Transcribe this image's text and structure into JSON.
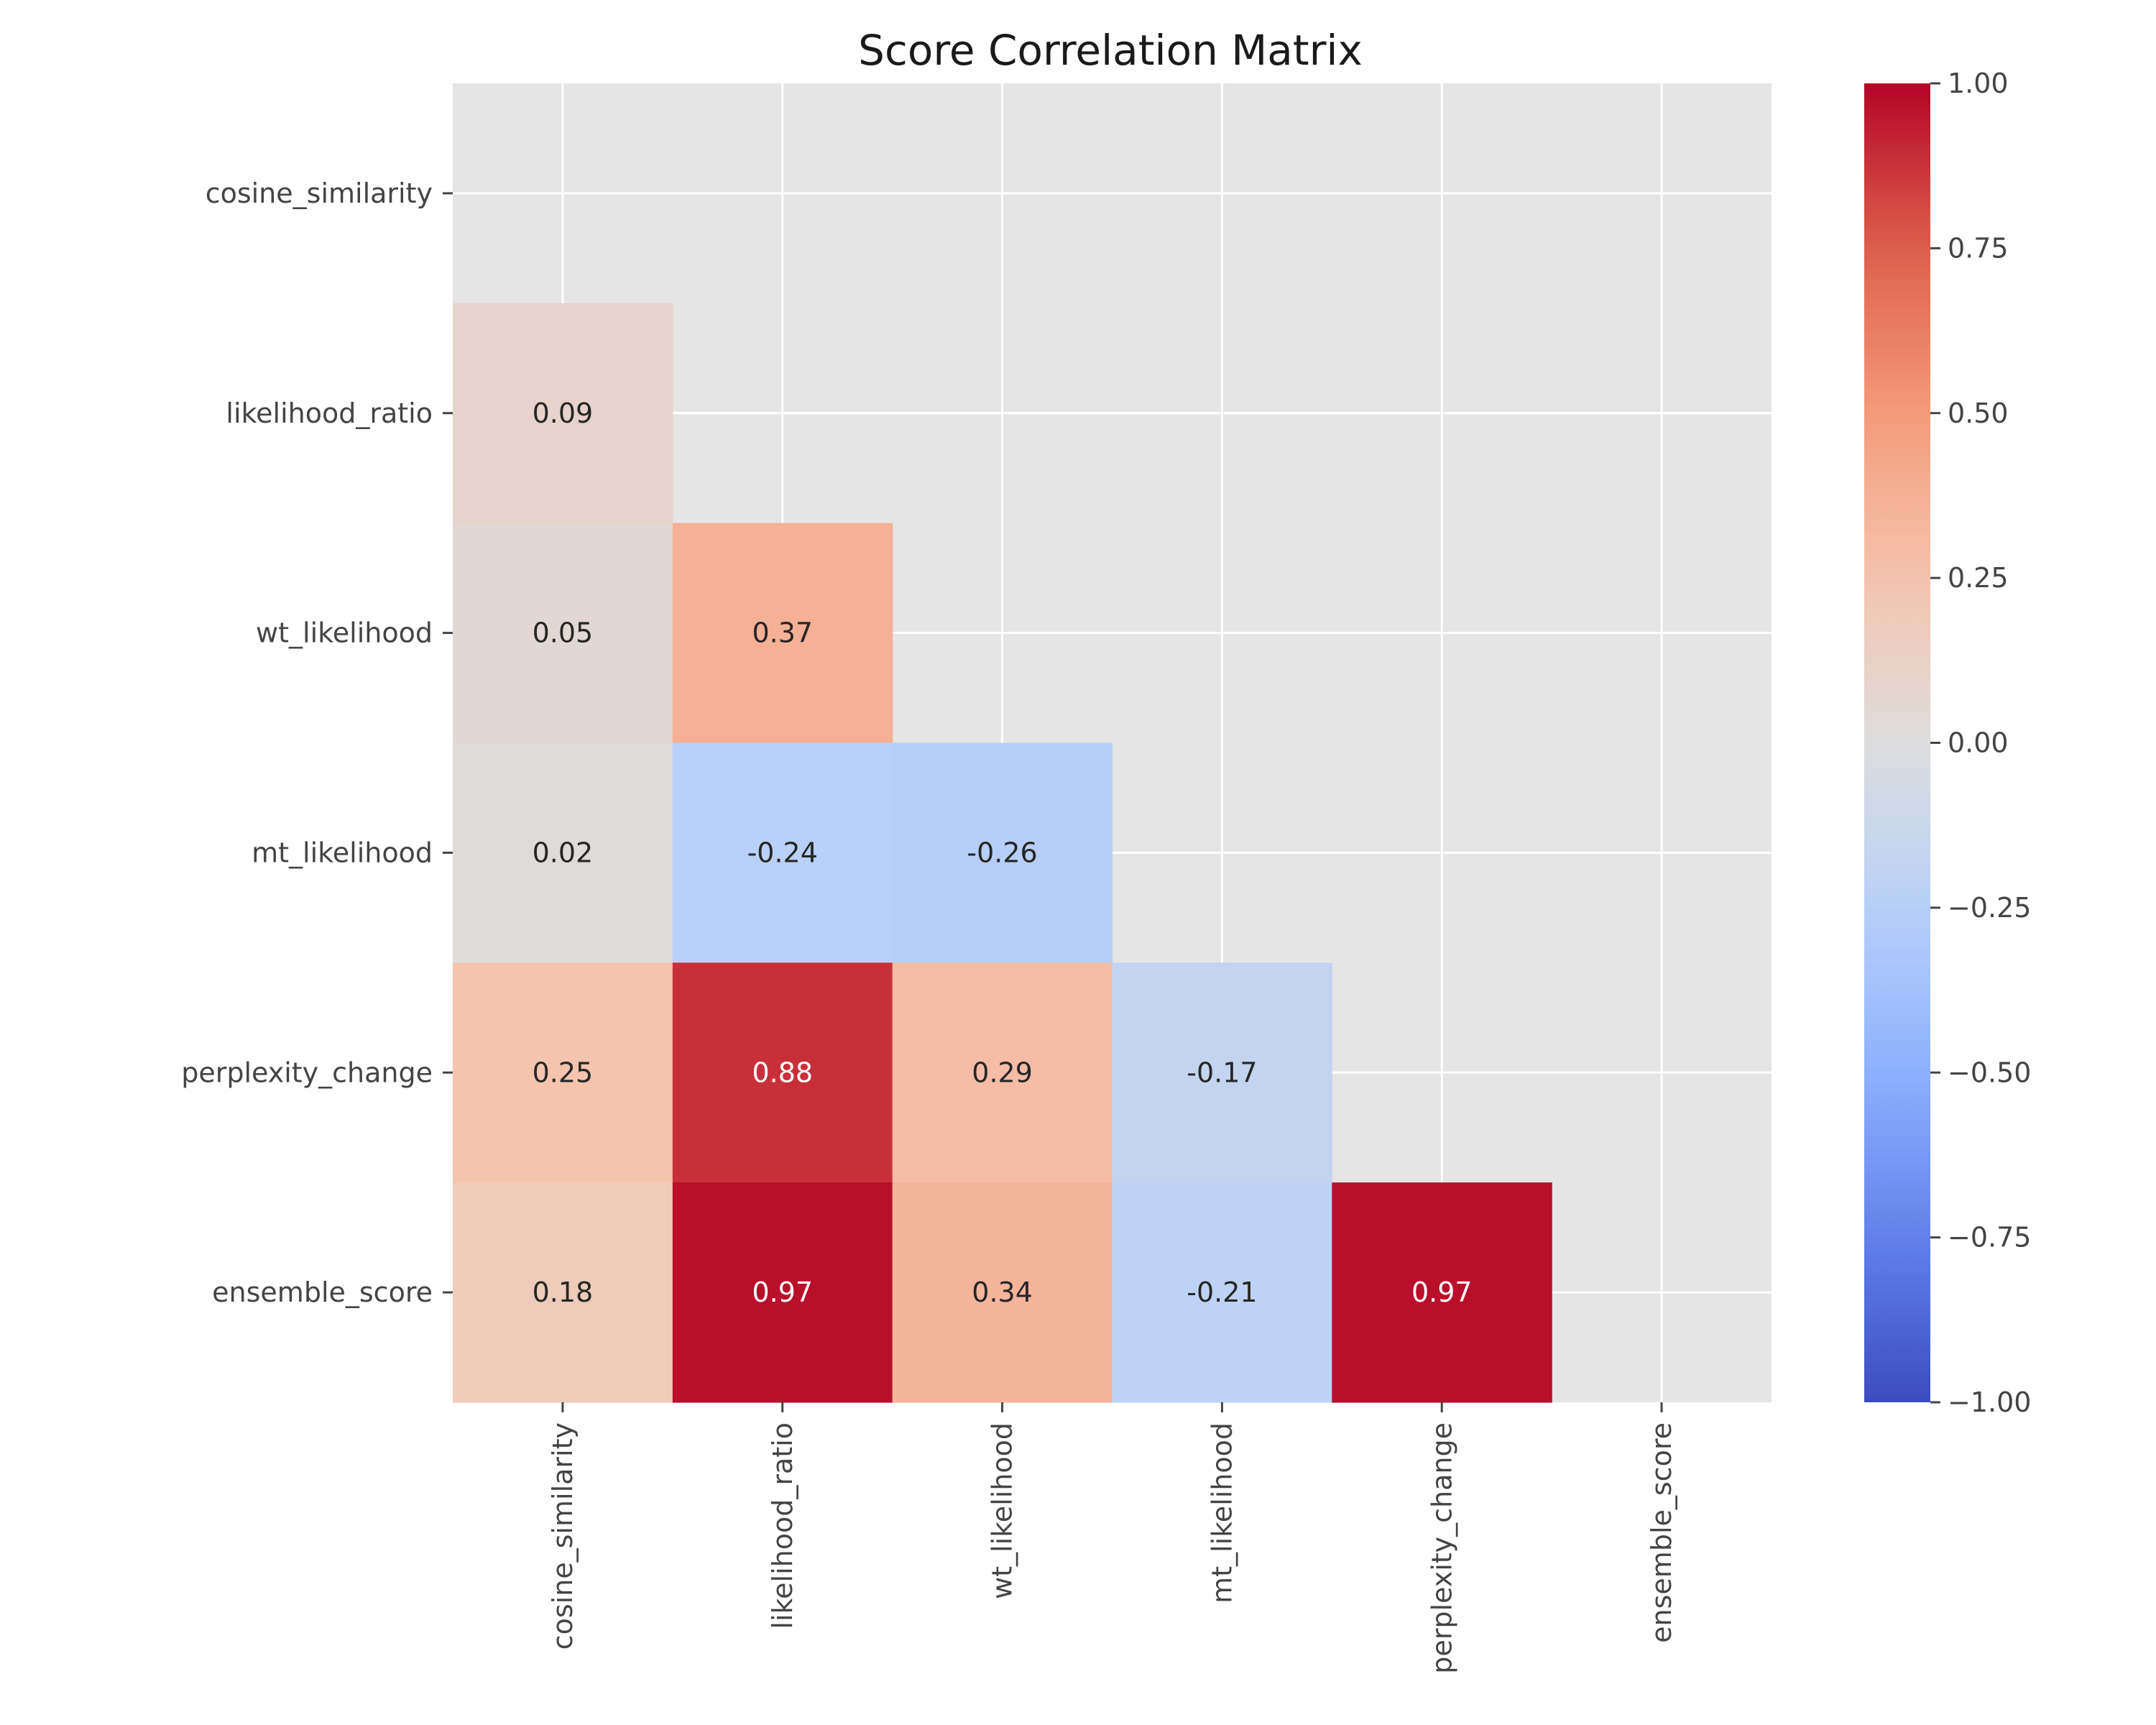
{
  "chart_data": {
    "type": "heatmap",
    "title": "Score Correlation Matrix",
    "xlabel": "",
    "ylabel": "",
    "mask": "upper-triangle-including-diagonal",
    "grid": true,
    "legend_position": "right",
    "rows": [
      "cosine_similarity",
      "likelihood_ratio",
      "wt_likelihood",
      "mt_likelihood",
      "perplexity_change",
      "ensemble_score"
    ],
    "columns": [
      "cosine_similarity",
      "likelihood_ratio",
      "wt_likelihood",
      "mt_likelihood",
      "perplexity_change",
      "ensemble_score"
    ],
    "values": [
      [
        null,
        null,
        null,
        null,
        null,
        null
      ],
      [
        0.09,
        null,
        null,
        null,
        null,
        null
      ],
      [
        0.05,
        0.37,
        null,
        null,
        null,
        null
      ],
      [
        0.02,
        -0.24,
        -0.26,
        null,
        null,
        null
      ],
      [
        0.25,
        0.88,
        0.29,
        -0.17,
        null,
        null
      ],
      [
        0.18,
        0.97,
        0.34,
        -0.21,
        0.97,
        null
      ]
    ],
    "labels": [
      [
        null,
        null,
        null,
        null,
        null,
        null
      ],
      [
        "0.09",
        null,
        null,
        null,
        null,
        null
      ],
      [
        "0.05",
        "0.37",
        null,
        null,
        null,
        null
      ],
      [
        "0.02",
        "-0.24",
        "-0.26",
        null,
        null,
        null
      ],
      [
        "0.25",
        "0.88",
        "0.29",
        "-0.17",
        null,
        null
      ],
      [
        "0.18",
        "0.97",
        "0.34",
        "-0.21",
        "0.97",
        null
      ]
    ],
    "colorbar": {
      "colormap": "coolwarm",
      "vmin": -1.0,
      "vmax": 1.0,
      "ticks": [
        1.0,
        0.75,
        0.5,
        0.25,
        0.0,
        -0.25,
        -0.5,
        -0.75,
        -1.0
      ],
      "tick_labels": [
        "1.00",
        "0.75",
        "0.50",
        "0.25",
        "0.00",
        "−0.25",
        "−0.50",
        "−0.75",
        "−1.00"
      ]
    },
    "colors": {
      "background": "#e5e5e5",
      "grid": "#ffffff"
    }
  }
}
